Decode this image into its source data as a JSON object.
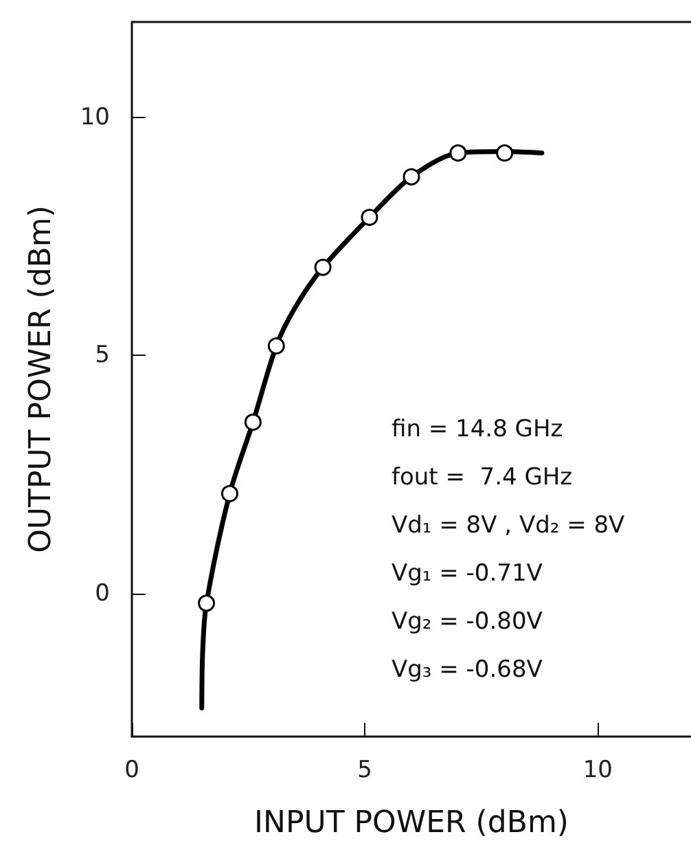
{
  "chart_data": {
    "type": "line",
    "xlabel": "INPUT POWER (dBm)",
    "ylabel": "OUTPUT POWER (dBm)",
    "xlim": [
      0,
      12
    ],
    "xticks": [
      0,
      5,
      10
    ],
    "ylim": [
      -3,
      12
    ],
    "yticks": [
      0,
      5,
      10
    ],
    "grid": false,
    "series": [
      {
        "color": "#000000",
        "marker": "none",
        "line_style": "solid",
        "x": [
          1.5,
          1.52,
          1.6,
          2.1,
          2.6,
          3.1,
          3.5,
          4.1,
          5.1,
          6.0,
          7.0,
          8.0,
          8.8
        ],
        "values": [
          -2.4,
          -1.2,
          -0.2,
          2.1,
          3.6,
          5.2,
          6.0,
          6.85,
          7.9,
          8.75,
          9.25,
          9.28,
          9.25
        ]
      },
      {
        "type": "scatter",
        "color": "#000000",
        "marker": "circle",
        "x": [
          1.6,
          2.1,
          2.6,
          3.1,
          4.1,
          5.1,
          6.0,
          7.0,
          8.0
        ],
        "values": [
          -0.2,
          2.1,
          3.6,
          5.2,
          6.85,
          7.9,
          8.75,
          9.25,
          9.25
        ]
      }
    ],
    "annotations": [
      "fin = 14.8 GHz",
      "fout =  7.4 GHz",
      "Vd₁ = 8V , Vd₂ = 8V",
      "Vg₁ = -0.71V",
      "Vg₂ = -0.80V",
      "Vg₃ = -0.68V"
    ]
  }
}
